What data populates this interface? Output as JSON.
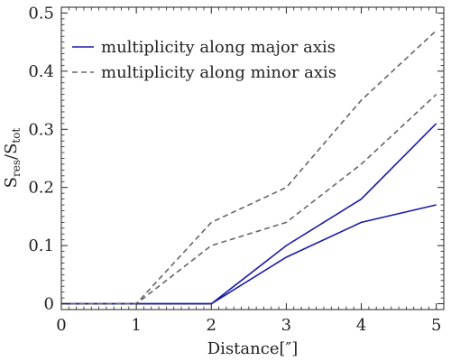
{
  "chart_data": {
    "type": "line",
    "xlabel": "Distance[″]",
    "ylabel": "S_res/S_tot",
    "xlim": [
      0,
      5.1
    ],
    "ylim": [
      -0.01,
      0.51
    ],
    "x_ticks": [
      0,
      1,
      2,
      3,
      4,
      5
    ],
    "y_ticks": [
      0,
      0.1,
      0.2,
      0.3,
      0.4,
      0.5
    ],
    "x_tick_labels": [
      "0",
      "1",
      "2",
      "3",
      "4",
      "5"
    ],
    "y_tick_labels": [
      "0",
      "0.1",
      "0.2",
      "0.3",
      "0.4",
      "0.5"
    ],
    "legend_position": "top-left",
    "legend": [
      {
        "label": "multiplicity along major axis",
        "style": "solid",
        "color": "#1a1aaa"
      },
      {
        "label": "multiplicity along minor axis",
        "style": "dashed",
        "color": "#666666"
      }
    ],
    "x": [
      0,
      1,
      2,
      3,
      4,
      5
    ],
    "series": [
      {
        "group": "major",
        "style": "solid",
        "color": "#1a1aaa",
        "values": [
          0,
          0,
          0,
          0.1,
          0.18,
          0.31
        ]
      },
      {
        "group": "major",
        "style": "solid",
        "color": "#1a1aaa",
        "values": [
          0,
          0,
          0,
          0.08,
          0.14,
          0.17
        ]
      },
      {
        "group": "minor",
        "style": "dashed",
        "color": "#666666",
        "values": [
          0,
          0,
          0.14,
          0.2,
          0.35,
          0.47
        ]
      },
      {
        "group": "minor",
        "style": "dashed",
        "color": "#666666",
        "values": [
          0,
          0,
          0.1,
          0.14,
          0.24,
          0.36
        ]
      }
    ]
  }
}
